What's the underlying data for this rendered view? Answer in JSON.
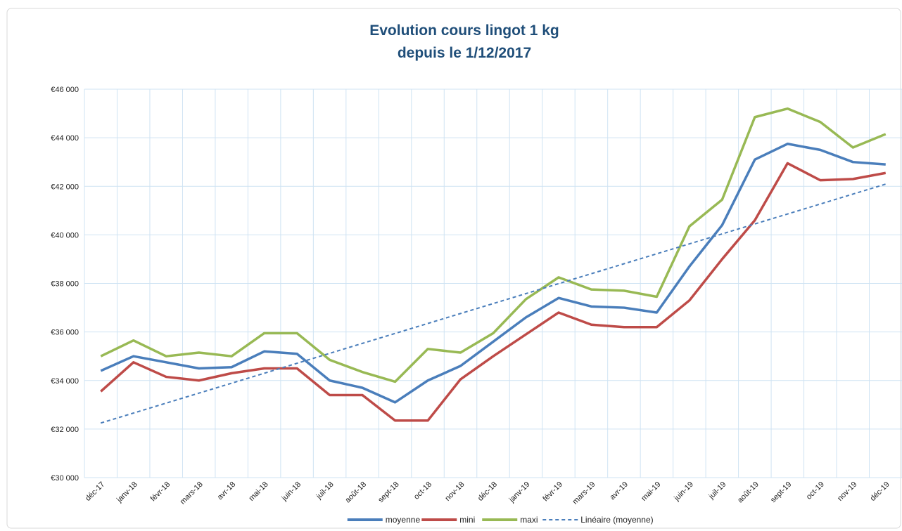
{
  "chart_data": {
    "type": "line",
    "title": "Evolution cours lingot 1 kg",
    "subtitle": "depuis le 1/12/2017",
    "categories": [
      "déc-17",
      "janv-18",
      "févr-18",
      "mars-18",
      "avr-18",
      "mai-18",
      "juin-18",
      "juil-18",
      "août-18",
      "sept-18",
      "oct-18",
      "nov-18",
      "déc-18",
      "janv-19",
      "févr-19",
      "mars-19",
      "avr-19",
      "mai-19",
      "juin-19",
      "juil-19",
      "août-19",
      "sept-19",
      "oct-19",
      "nov-19",
      "déc-19"
    ],
    "series": [
      {
        "name": "moyenne",
        "color": "#4a7ebb",
        "values": [
          34400,
          35000,
          34750,
          34500,
          34550,
          35200,
          35100,
          34000,
          33700,
          33100,
          34000,
          34600,
          35600,
          36600,
          37400,
          37050,
          37000,
          36800,
          38700,
          40400,
          43100,
          43750,
          43500,
          43000,
          42900
        ]
      },
      {
        "name": "mini",
        "color": "#be4b48",
        "values": [
          33550,
          34750,
          34150,
          34000,
          34300,
          34500,
          34500,
          33400,
          33400,
          32350,
          32350,
          34050,
          35000,
          35900,
          36800,
          36300,
          36200,
          36200,
          37300,
          39000,
          40600,
          42950,
          42250,
          42300,
          42550
        ]
      },
      {
        "name": "maxi",
        "color": "#98b954",
        "values": [
          35000,
          35650,
          35000,
          35150,
          35000,
          35950,
          35950,
          34850,
          34350,
          33950,
          35300,
          35150,
          35950,
          37350,
          38250,
          37750,
          37700,
          37450,
          40350,
          41450,
          44850,
          45200,
          44650,
          43600,
          44150
        ]
      },
      {
        "name": "Linéaire (moyenne)",
        "color": "#4a7ebb",
        "dashed": true,
        "values": [
          32250,
          32660,
          33070,
          33480,
          33890,
          34300,
          34710,
          35120,
          35530,
          35940,
          36350,
          36760,
          37170,
          37580,
          37990,
          38400,
          38810,
          39220,
          39630,
          40040,
          40450,
          40860,
          41270,
          41680,
          42090
        ]
      }
    ],
    "ylim": [
      30000,
      46000
    ],
    "yticks": [
      {
        "value": 30000,
        "label": "€30 000"
      },
      {
        "value": 32000,
        "label": "€32 000"
      },
      {
        "value": 34000,
        "label": "€34 000"
      },
      {
        "value": 36000,
        "label": "€36 000"
      },
      {
        "value": 38000,
        "label": "€38 000"
      },
      {
        "value": 40000,
        "label": "€40 000"
      },
      {
        "value": 42000,
        "label": "€42 000"
      },
      {
        "value": 44000,
        "label": "€44 000"
      },
      {
        "value": 46000,
        "label": "€46 000"
      }
    ],
    "grid": true,
    "legend": "bottom"
  }
}
